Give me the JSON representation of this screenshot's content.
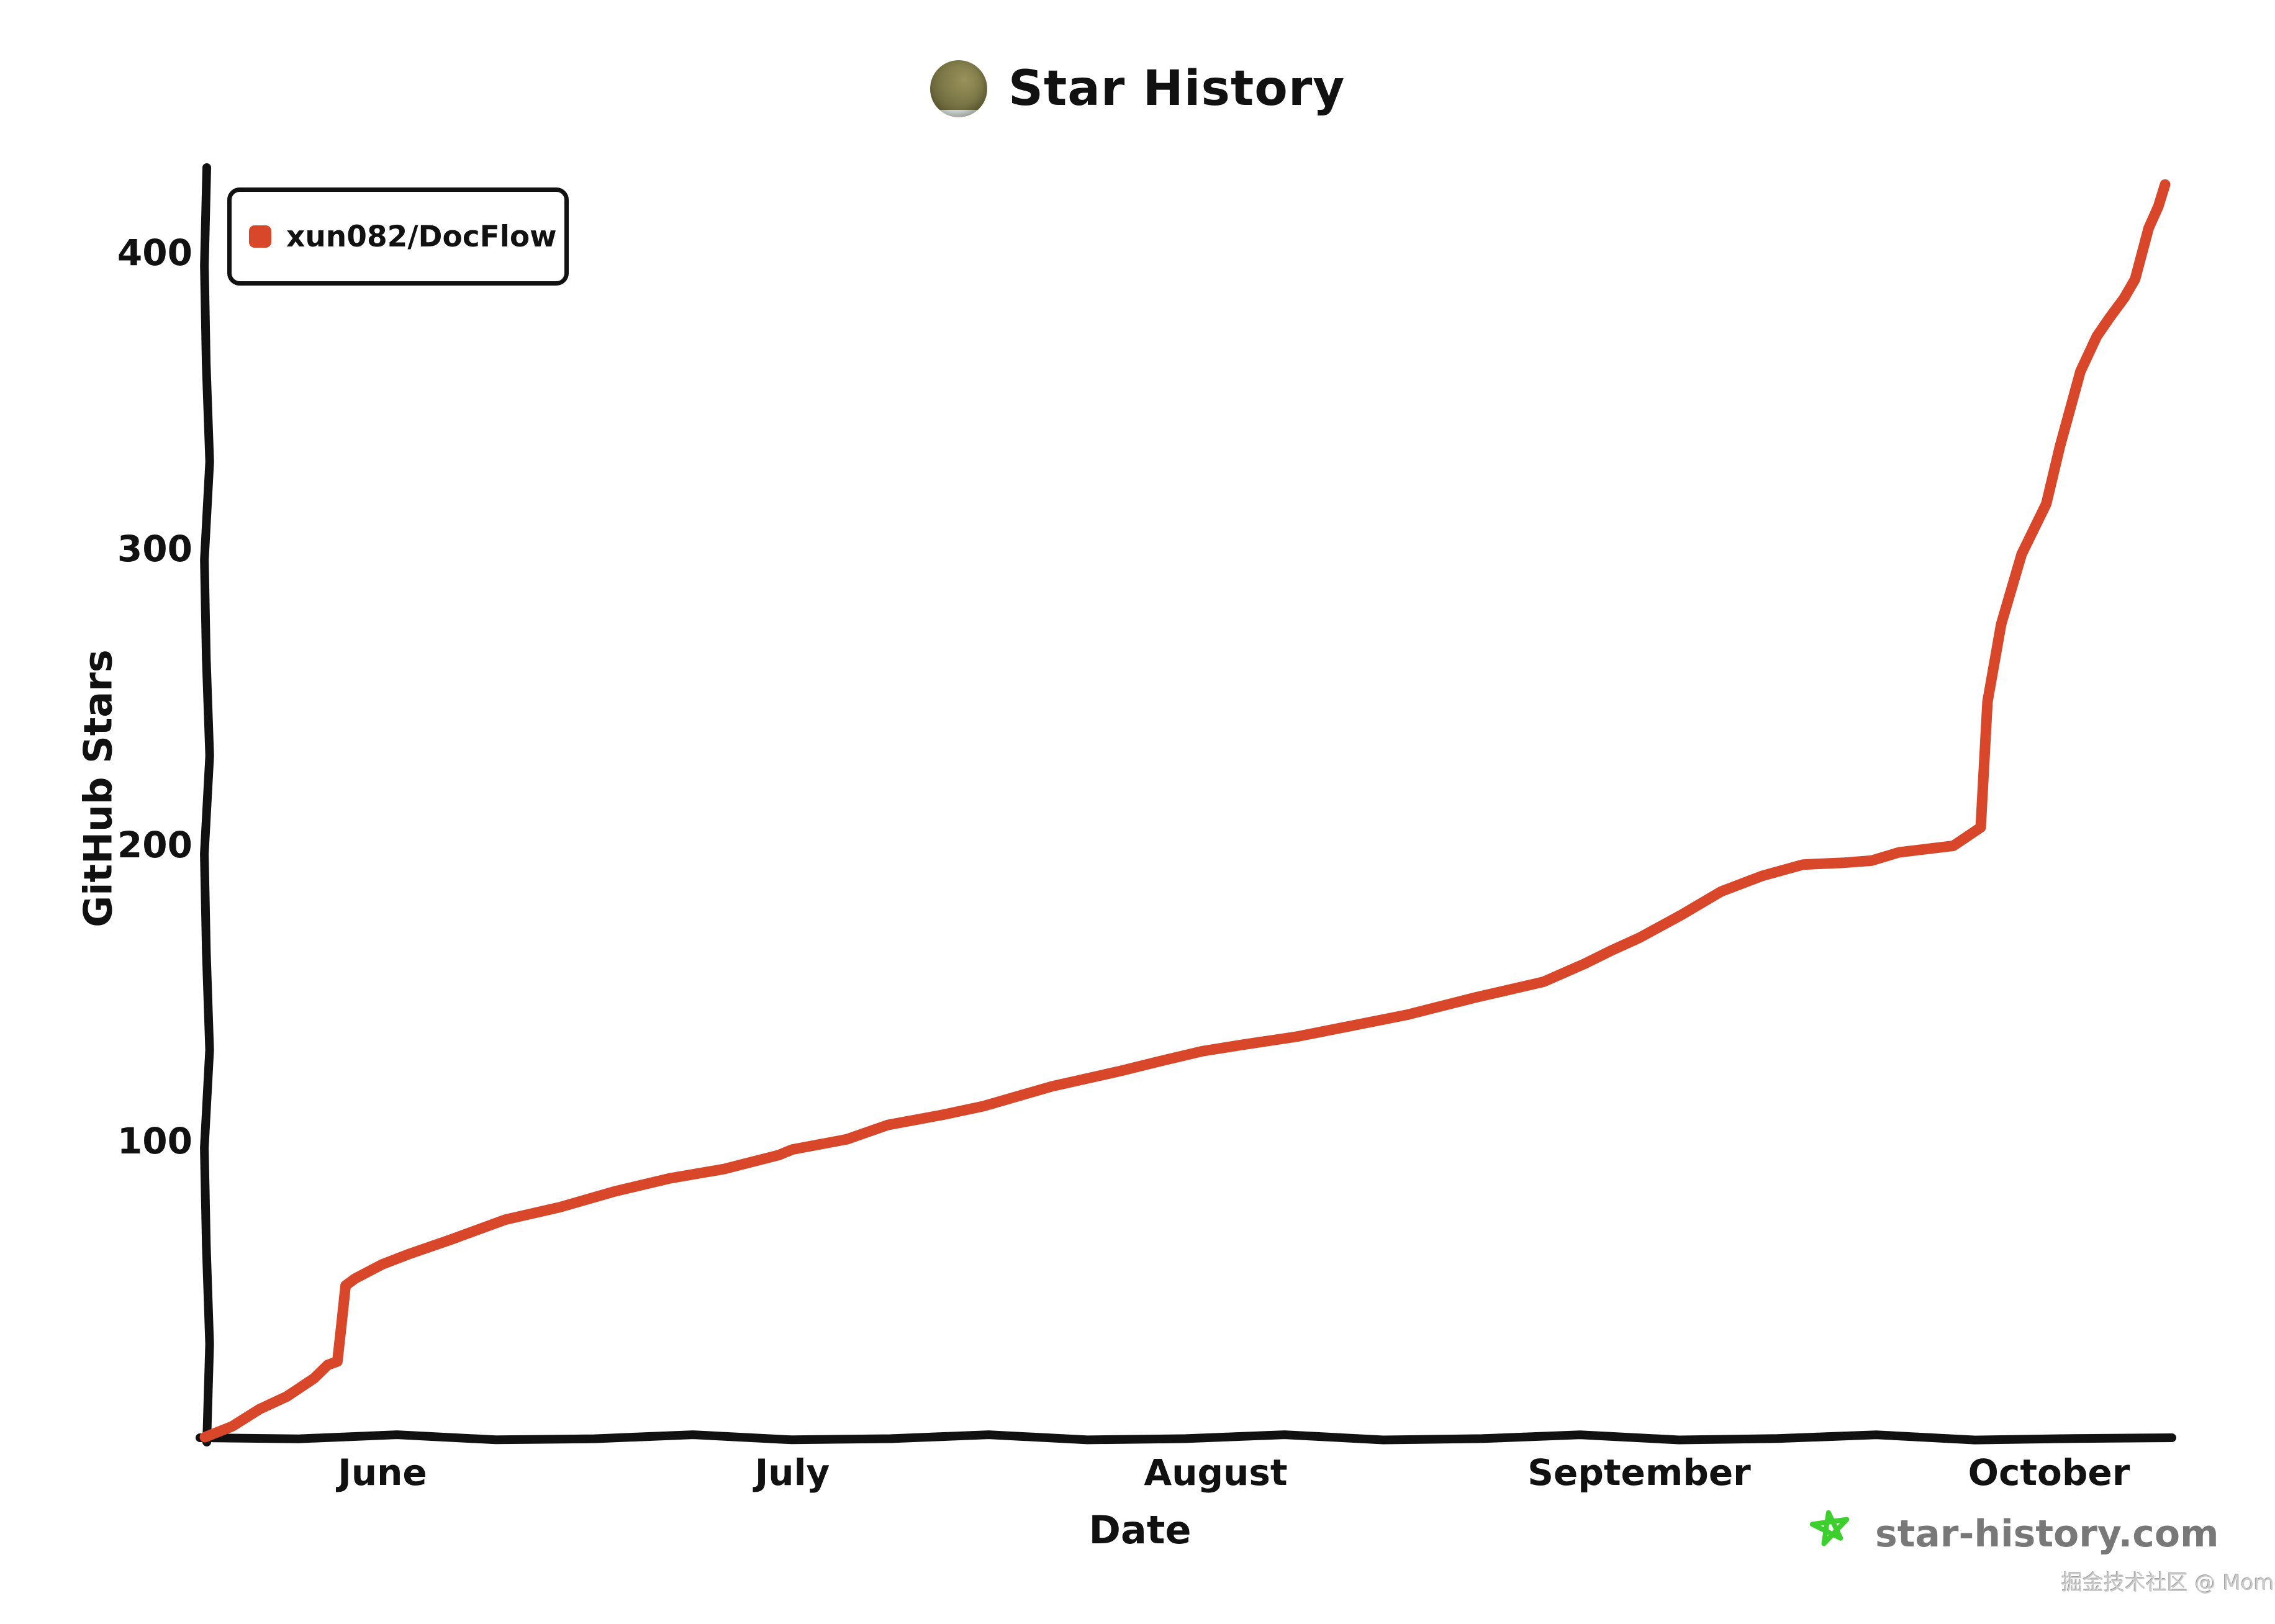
{
  "title": {
    "text": "Star History"
  },
  "legend": {
    "series_label": "xun082/DocFlow"
  },
  "y_axis": {
    "label": "GitHub Stars",
    "ticks": [
      100,
      200,
      300,
      400
    ]
  },
  "x_axis": {
    "label": "Date",
    "ticks": [
      "June",
      "July",
      "August",
      "September",
      "October"
    ]
  },
  "footer": {
    "site": "star-history.com",
    "watermark": "掘金技术社区 @ Moment"
  },
  "colors": {
    "line": "#d9472b",
    "legend_marker": "#d9472b",
    "axis": "#111111",
    "footer_text": "#787878",
    "footer_star": "#3ccf2e",
    "background": "#ffffff"
  },
  "icons": [
    "repo-avatar-icon",
    "star-doodle-icon"
  ],
  "chart_data": {
    "type": "line",
    "title": "Star History",
    "xlabel": "Date",
    "ylabel": "GitHub Stars",
    "grid": false,
    "legend_position": "top-left",
    "x_unit": "days since first data point (~May 19)",
    "x_tick_labels": [
      "June",
      "July",
      "August",
      "September",
      "October"
    ],
    "x_tick_days": [
      13,
      43,
      74,
      105,
      135
    ],
    "x_domain_days": [
      0,
      144
    ],
    "y_ticks": [
      100,
      200,
      300,
      400
    ],
    "ylim": [
      0,
      430
    ],
    "series": [
      {
        "name": "xun082/DocFlow",
        "color": "#d9472b",
        "points_day_stars": [
          [
            0,
            0
          ],
          [
            2,
            4
          ],
          [
            4,
            9
          ],
          [
            6,
            14
          ],
          [
            8,
            20
          ],
          [
            9,
            24
          ],
          [
            9.7,
            26
          ],
          [
            10,
            38
          ],
          [
            10.3,
            51
          ],
          [
            11,
            54
          ],
          [
            13,
            58
          ],
          [
            15,
            62
          ],
          [
            18,
            67
          ],
          [
            22,
            73
          ],
          [
            26,
            78
          ],
          [
            30,
            83
          ],
          [
            34,
            87
          ],
          [
            38,
            91
          ],
          [
            42,
            95
          ],
          [
            43,
            97
          ],
          [
            47,
            101
          ],
          [
            50,
            105
          ],
          [
            54,
            109
          ],
          [
            57,
            112
          ],
          [
            62,
            118
          ],
          [
            67,
            124
          ],
          [
            70,
            127
          ],
          [
            73,
            130
          ],
          [
            76,
            133
          ],
          [
            80,
            135
          ],
          [
            83,
            138
          ],
          [
            88,
            143
          ],
          [
            93,
            148
          ],
          [
            98,
            154
          ],
          [
            101,
            160
          ],
          [
            103,
            164
          ],
          [
            105,
            169
          ],
          [
            108,
            176
          ],
          [
            111,
            184
          ],
          [
            114,
            190
          ],
          [
            117,
            193
          ],
          [
            120,
            194
          ],
          [
            122,
            195
          ],
          [
            124,
            197
          ],
          [
            128,
            200
          ],
          [
            130,
            206
          ],
          [
            130.5,
            248
          ],
          [
            131.5,
            275
          ],
          [
            133,
            298
          ],
          [
            134.8,
            315
          ],
          [
            135.8,
            335
          ],
          [
            136.8,
            351
          ],
          [
            137.3,
            360
          ],
          [
            138.5,
            372
          ],
          [
            139.5,
            378
          ],
          [
            140.5,
            385
          ],
          [
            141.3,
            391
          ],
          [
            142.3,
            408
          ],
          [
            143,
            416
          ],
          [
            143.5,
            423
          ]
        ]
      }
    ]
  }
}
